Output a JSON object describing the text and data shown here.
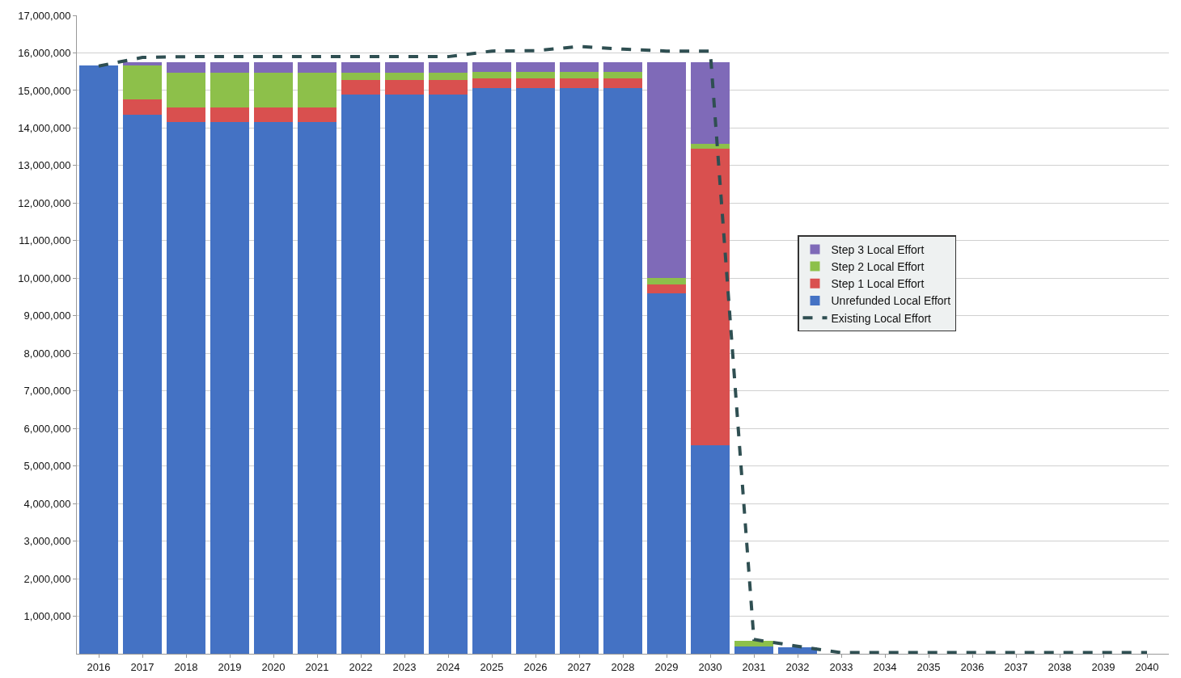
{
  "chart_data": {
    "type": "bar",
    "stacked": true,
    "categories": [
      "2016",
      "2017",
      "2018",
      "2019",
      "2020",
      "2021",
      "2022",
      "2023",
      "2024",
      "2025",
      "2026",
      "2027",
      "2028",
      "2029",
      "2030",
      "2031",
      "2032",
      "2033",
      "2034",
      "2035",
      "2036",
      "2037",
      "2038",
      "2039",
      "2040"
    ],
    "series": [
      {
        "name": "Unrefunded Local Effort",
        "color": "#4472c4",
        "values": [
          15660000,
          14360000,
          14160000,
          14160000,
          14160000,
          14160000,
          14890000,
          14890000,
          14890000,
          15060000,
          15060000,
          15060000,
          15060000,
          9600000,
          5550000,
          200000,
          170000,
          0,
          0,
          0,
          0,
          0,
          0,
          0,
          0
        ]
      },
      {
        "name": "Step 1 Local Effort",
        "color": "#d9504f",
        "values": [
          0,
          400000,
          390000,
          390000,
          390000,
          390000,
          380000,
          380000,
          380000,
          260000,
          260000,
          260000,
          260000,
          230000,
          7900000,
          0,
          0,
          0,
          0,
          0,
          0,
          0,
          0,
          0,
          0
        ]
      },
      {
        "name": "Step 2 Local Effort",
        "color": "#8dc04a",
        "values": [
          0,
          900000,
          920000,
          920000,
          920000,
          920000,
          200000,
          200000,
          200000,
          170000,
          170000,
          170000,
          170000,
          170000,
          130000,
          150000,
          0,
          0,
          0,
          0,
          0,
          0,
          0,
          0,
          0
        ]
      },
      {
        "name": "Step 3 Local Effort",
        "color": "#7f6ab8",
        "values": [
          0,
          100000,
          280000,
          280000,
          280000,
          280000,
          280000,
          280000,
          280000,
          270000,
          270000,
          270000,
          270000,
          5750000,
          2170000,
          0,
          0,
          0,
          0,
          0,
          0,
          0,
          0,
          0,
          0
        ]
      },
      {
        "name": "Existing Local Effort",
        "type": "line",
        "color": "#2f4f52",
        "line_style": "dashed",
        "marker": "none",
        "values": [
          15650000,
          15880000,
          15900000,
          15900000,
          15900000,
          15900000,
          15900000,
          15900000,
          15900000,
          16050000,
          16060000,
          16170000,
          16100000,
          16050000,
          16050000,
          380000,
          200000,
          30000,
          30000,
          30000,
          30000,
          30000,
          30000,
          30000,
          30000
        ]
      }
    ],
    "ylim": [
      0,
      17000000
    ],
    "yticks": [
      {
        "value": 1000000,
        "label": "1,000,000"
      },
      {
        "value": 2000000,
        "label": "2,000,000"
      },
      {
        "value": 3000000,
        "label": "3,000,000"
      },
      {
        "value": 4000000,
        "label": "4,000,000"
      },
      {
        "value": 5000000,
        "label": "5,000,000"
      },
      {
        "value": 6000000,
        "label": "6,000,000"
      },
      {
        "value": 7000000,
        "label": "7,000,000"
      },
      {
        "value": 8000000,
        "label": "8,000,000"
      },
      {
        "value": 9000000,
        "label": "9,000,000"
      },
      {
        "value": 10000000,
        "label": "10,000,000"
      },
      {
        "value": 11000000,
        "label": "11,000,000"
      },
      {
        "value": 12000000,
        "label": "12,000,000"
      },
      {
        "value": 13000000,
        "label": "13,000,000"
      },
      {
        "value": 14000000,
        "label": "14,000,000"
      },
      {
        "value": 15000000,
        "label": "15,000,000"
      },
      {
        "value": 16000000,
        "label": "16,000,000"
      },
      {
        "value": 17000000,
        "label": "17,000,000"
      }
    ],
    "grid": "y",
    "legend": "right"
  }
}
